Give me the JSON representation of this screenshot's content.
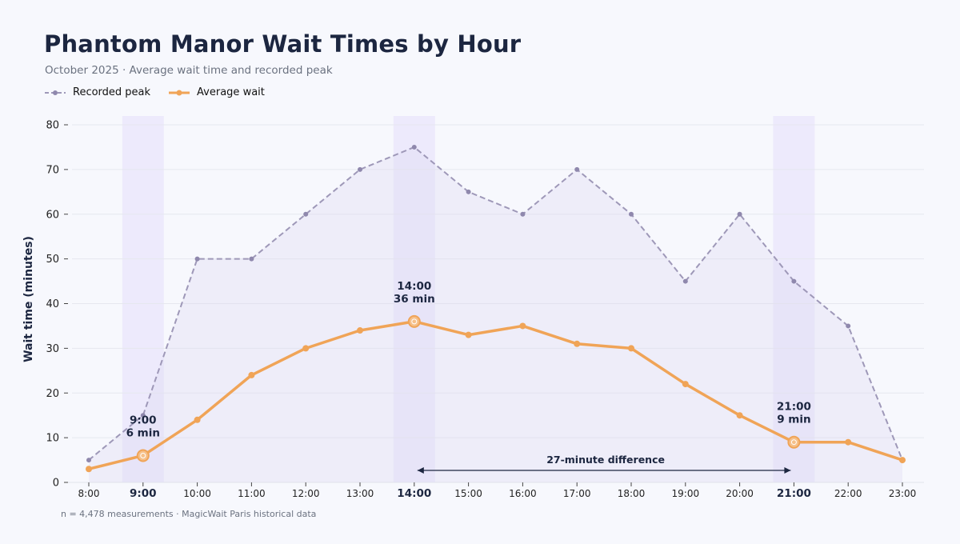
{
  "title": "Phantom Manor Wait Times by Hour",
  "subtitle": "October 2025 · Average wait time and recorded peak",
  "footnote": "n = 4,478 measurements · MagicWait Paris historical data",
  "colors": {
    "average": "#f0a457",
    "peak": "#9e98b8",
    "highlight_band": "#e9e6fb",
    "text_dark": "#1c2640",
    "arrow": "#1c2640"
  },
  "chart_data": {
    "type": "line",
    "title": "Phantom Manor Wait Times by Hour",
    "subtitle": "October 2025 · Average wait time and recorded peak",
    "xlabel": "",
    "ylabel": "Wait time (minutes)",
    "ylim": [
      0,
      80
    ],
    "yticks": [
      "0",
      "10",
      "20",
      "30",
      "40",
      "50",
      "60",
      "70",
      "80"
    ],
    "categories": [
      "8:00",
      "9:00",
      "10:00",
      "11:00",
      "12:00",
      "13:00",
      "14:00",
      "15:00",
      "16:00",
      "17:00",
      "18:00",
      "19:00",
      "20:00",
      "21:00",
      "22:00",
      "23:00"
    ],
    "series": [
      {
        "name": "Recorded peak",
        "style": "dashed",
        "values": [
          5,
          15,
          50,
          50,
          60,
          70,
          75,
          65,
          60,
          70,
          60,
          45,
          60,
          45,
          35,
          5
        ]
      },
      {
        "name": "Average wait",
        "style": "solid",
        "values": [
          3,
          6,
          14,
          24,
          30,
          34,
          36,
          33,
          35,
          31,
          30,
          22,
          15,
          9,
          9,
          5
        ]
      }
    ],
    "highlights": [
      {
        "category": "9:00",
        "label_time": "9:00",
        "label_value": "6 min",
        "value": 6
      },
      {
        "category": "14:00",
        "label_time": "14:00",
        "label_value": "36 min",
        "value": 36
      },
      {
        "category": "21:00",
        "label_time": "21:00",
        "label_value": "9 min",
        "value": 9
      }
    ],
    "annotation": {
      "text": "27-minute difference",
      "from": "14:00",
      "to": "21:00"
    },
    "legend": "top-left",
    "grid": true
  }
}
